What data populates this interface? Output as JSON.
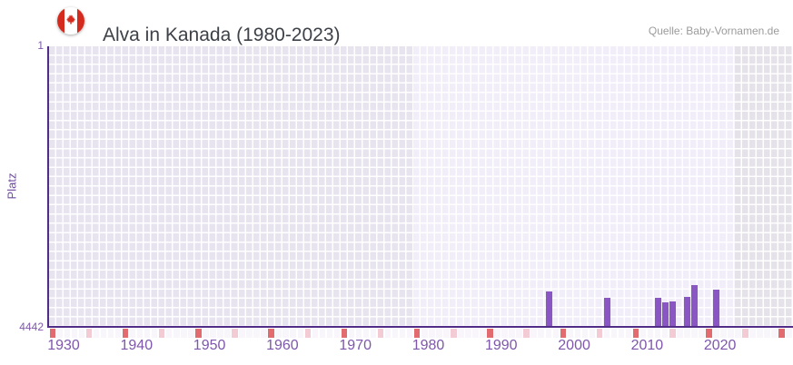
{
  "header": {
    "title": "Alva in Kanada (1980-2023)",
    "source": "Quelle: Baby-Vornamen.de",
    "flag_icon": "canada-flag"
  },
  "chart_data": {
    "type": "bar",
    "title": "Alva in Kanada (1980-2023)",
    "xlabel": "",
    "ylabel": "Platz",
    "grid": true,
    "legend": "none",
    "y_axis": {
      "label_top": "1",
      "label_bottom": "4442",
      "min": 1,
      "max": 4442,
      "inverted": true
    },
    "x_axis": {
      "start_year": 1930,
      "end_year": 2031,
      "tick_years": [
        1930,
        1940,
        1950,
        1960,
        1970,
        1980,
        1990,
        2000,
        2010,
        2020
      ],
      "data_period_start": 1980,
      "data_period_end": 2023
    },
    "series": [
      {
        "name": "Platz",
        "points": [
          {
            "year": 1998,
            "rank": 3880
          },
          {
            "year": 2006,
            "rank": 3980
          },
          {
            "year": 2013,
            "rank": 3980
          },
          {
            "year": 2014,
            "rank": 4060
          },
          {
            "year": 2015,
            "rank": 4045
          },
          {
            "year": 2017,
            "rank": 3970
          },
          {
            "year": 2018,
            "rank": 3780
          },
          {
            "year": 2021,
            "rank": 3855
          }
        ]
      }
    ],
    "axis_markers": {
      "decade_years": [
        1930,
        1940,
        1950,
        1960,
        1970,
        1980,
        1990,
        2000,
        2010,
        2020,
        2030
      ],
      "half_decade_years": [
        1935,
        1945,
        1955,
        1965,
        1975,
        1985,
        1995,
        2005,
        2015,
        2025
      ]
    },
    "colors": {
      "bar": "#8a56c3",
      "axis_line": "#512d87",
      "grid_past": "#e7e3ef",
      "grid_active": "#f2eef9",
      "grid_future": "#e5e2e9",
      "marker_default": "#f8f5fb",
      "marker_decade": "#e16b6f",
      "marker_half_decade": "#f2cbd4",
      "tick_label": "#7e57ab",
      "flag_red": "#d52b1e"
    }
  }
}
